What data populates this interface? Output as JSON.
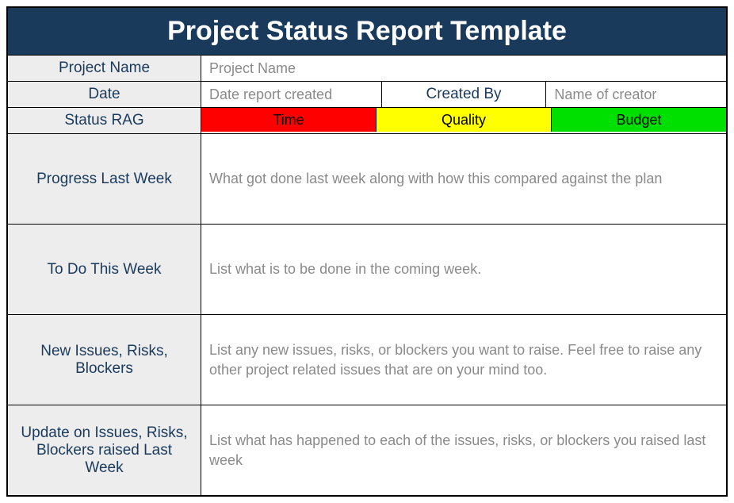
{
  "title": "Project Status Report Template",
  "colors": {
    "header_bg": "#1a3a5c",
    "header_text": "#ffffff",
    "label_bg": "#ededed",
    "label_text": "#1a3a5c",
    "value_bg": "#ffffff",
    "placeholder_text": "#8a8a8a",
    "border": "#000000"
  },
  "meta": {
    "project_name_label": "Project Name",
    "project_name_placeholder": "Project Name",
    "date_label": "Date",
    "date_placeholder": "Date report created",
    "created_by_label": "Created By",
    "created_by_placeholder": "Name of creator"
  },
  "rag": {
    "label": "Status RAG",
    "items": [
      {
        "label": "Time",
        "bg": "#ff0000"
      },
      {
        "label": "Quality",
        "bg": "#ffff00"
      },
      {
        "label": "Budget",
        "bg": "#00e000"
      }
    ]
  },
  "sections": [
    {
      "label": "Progress Last Week",
      "placeholder": "What got done last week along with how this compared against the plan"
    },
    {
      "label": "To Do This Week",
      "placeholder": "List what is to be done in the coming week."
    },
    {
      "label": "New Issues, Risks, Blockers",
      "placeholder": "List any new issues, risks, or blockers you want to raise. Feel free to raise any other project related issues that are on your mind too."
    },
    {
      "label": "Update on Issues, Risks, Blockers raised Last Week",
      "placeholder": "List what has happened to each of the issues, risks, or blockers you raised last week"
    }
  ]
}
